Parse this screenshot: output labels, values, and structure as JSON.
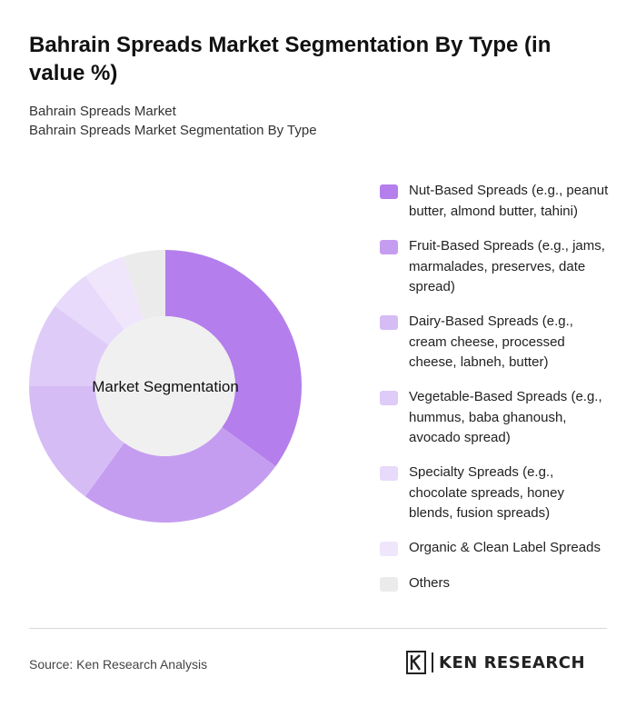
{
  "header": {
    "title": "Bahrain Spreads Market Segmentation By Type (in value %)",
    "subtitle_1": "Bahrain Spreads Market",
    "subtitle_2": "Bahrain Spreads Market Segmentation By Type"
  },
  "chart_data": {
    "type": "pie",
    "variant": "donut",
    "center_label": "Market Segmentation",
    "legend_position": "right",
    "categories": [
      "Nut-Based Spreads (e.g., peanut butter, almond butter, tahini)",
      "Fruit-Based Spreads (e.g., jams, marmalades, preserves, date spread)",
      "Dairy-Based Spreads (e.g., cream cheese, processed cheese, labneh, butter)",
      "Vegetable-Based Spreads (e.g., hummus, baba ghanoush, avocado spread)",
      "Specialty Spreads (e.g., chocolate spreads, honey blends, fusion spreads)",
      "Organic & Clean Label Spreads",
      "Others"
    ],
    "values": [
      35,
      25,
      15,
      10,
      5,
      5,
      5
    ],
    "colors": [
      "#b47fec",
      "#c59df0",
      "#d5bcf5",
      "#decbf7",
      "#e7dafa",
      "#efe6fc",
      "#ebebeb"
    ]
  },
  "footer": {
    "source": "Source: Ken Research Analysis",
    "logo_text": "KEN RESEARCH"
  }
}
